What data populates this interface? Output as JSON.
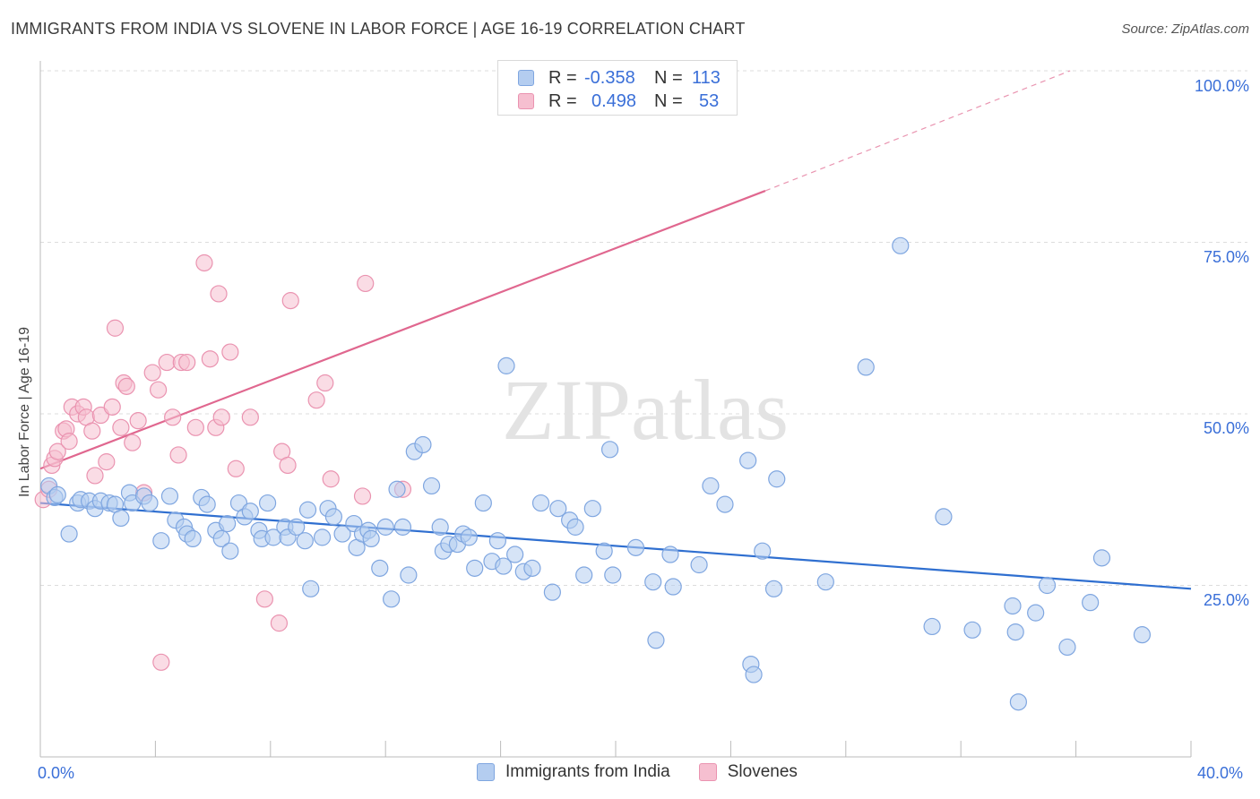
{
  "title": "IMMIGRANTS FROM INDIA VS SLOVENE IN LABOR FORCE | AGE 16-19 CORRELATION CHART",
  "source": "Source: ZipAtlas.com",
  "watermark": "ZIPatlas",
  "legend_top": {
    "rows": [
      {
        "r_label": "R =",
        "r_value": "-0.358",
        "n_label": "N =",
        "n_value": "113"
      },
      {
        "r_label": "R =",
        "r_value": "0.498",
        "n_label": "N =",
        "n_value": "53"
      }
    ]
  },
  "colors": {
    "blue_fill": "#b4cdf0",
    "blue_stroke": "#7fa6e0",
    "blue_line": "#2f6fd0",
    "pink_fill": "#f6bfd0",
    "pink_stroke": "#ea93b0",
    "pink_line": "#e0678f",
    "accent_text": "#3a6fd8",
    "grid": "#dcdcdc"
  },
  "chart_data": {
    "type": "scatter",
    "title": "IMMIGRANTS FROM INDIA VS SLOVENE IN LABOR FORCE | AGE 16-19 CORRELATION CHART",
    "xlabel": "",
    "ylabel": "In Labor Force | Age 16-19",
    "xlim": [
      0,
      40
    ],
    "ylim": [
      0,
      100
    ],
    "x_tick_labels": [
      "0.0%",
      "40.0%"
    ],
    "y_ticks": [
      25,
      50,
      75,
      100
    ],
    "y_tick_labels": [
      "25.0%",
      "50.0%",
      "75.0%",
      "100.0%"
    ],
    "grid": true,
    "legend": "bottom-center",
    "series": [
      {
        "name": "Immigrants from India",
        "color": "#b4cdf0",
        "r": "-0.358",
        "n": "113",
        "trend": {
          "x0": 0,
          "y0": 37.0,
          "x1": 40,
          "y1": 24.5
        },
        "points": [
          [
            0.3,
            39.5
          ],
          [
            0.5,
            37.8
          ],
          [
            0.6,
            38.2
          ],
          [
            1.0,
            32.5
          ],
          [
            1.3,
            37.0
          ],
          [
            1.4,
            37.5
          ],
          [
            1.7,
            37.3
          ],
          [
            1.9,
            36.2
          ],
          [
            2.1,
            37.3
          ],
          [
            2.4,
            37.0
          ],
          [
            2.6,
            36.8
          ],
          [
            2.8,
            34.8
          ],
          [
            3.1,
            38.5
          ],
          [
            3.2,
            37.0
          ],
          [
            3.6,
            38.0
          ],
          [
            3.8,
            37.0
          ],
          [
            4.2,
            31.5
          ],
          [
            4.5,
            38.0
          ],
          [
            4.7,
            34.5
          ],
          [
            5.0,
            33.5
          ],
          [
            5.1,
            32.5
          ],
          [
            5.3,
            31.8
          ],
          [
            5.6,
            37.8
          ],
          [
            5.8,
            36.8
          ],
          [
            6.1,
            33.0
          ],
          [
            6.3,
            31.8
          ],
          [
            6.5,
            34.0
          ],
          [
            6.6,
            30.0
          ],
          [
            6.9,
            37.0
          ],
          [
            7.1,
            35.0
          ],
          [
            7.3,
            35.8
          ],
          [
            7.6,
            33.0
          ],
          [
            7.7,
            31.8
          ],
          [
            7.9,
            37.0
          ],
          [
            8.1,
            32.0
          ],
          [
            8.5,
            33.5
          ],
          [
            8.6,
            32.0
          ],
          [
            8.9,
            33.5
          ],
          [
            9.2,
            31.5
          ],
          [
            9.3,
            36.0
          ],
          [
            9.4,
            24.5
          ],
          [
            9.8,
            32.0
          ],
          [
            10.0,
            36.2
          ],
          [
            10.2,
            35.0
          ],
          [
            10.5,
            32.5
          ],
          [
            10.9,
            34.0
          ],
          [
            11.0,
            30.5
          ],
          [
            11.2,
            32.5
          ],
          [
            11.4,
            33.0
          ],
          [
            11.5,
            31.8
          ],
          [
            11.8,
            27.5
          ],
          [
            12.0,
            33.5
          ],
          [
            12.2,
            23.0
          ],
          [
            12.4,
            39.0
          ],
          [
            12.6,
            33.5
          ],
          [
            12.8,
            26.5
          ],
          [
            13.0,
            44.5
          ],
          [
            13.3,
            45.5
          ],
          [
            13.6,
            39.5
          ],
          [
            13.9,
            33.5
          ],
          [
            14.0,
            30.0
          ],
          [
            14.2,
            31.0
          ],
          [
            14.5,
            31.0
          ],
          [
            14.7,
            32.5
          ],
          [
            14.9,
            32.0
          ],
          [
            15.1,
            27.5
          ],
          [
            15.4,
            37.0
          ],
          [
            15.7,
            28.5
          ],
          [
            15.9,
            31.5
          ],
          [
            16.1,
            27.8
          ],
          [
            16.2,
            57.0
          ],
          [
            16.5,
            29.5
          ],
          [
            16.8,
            27.0
          ],
          [
            17.1,
            27.5
          ],
          [
            17.4,
            37.0
          ],
          [
            17.8,
            24.0
          ],
          [
            18.0,
            36.2
          ],
          [
            18.4,
            34.5
          ],
          [
            18.6,
            33.5
          ],
          [
            18.9,
            26.5
          ],
          [
            19.2,
            36.2
          ],
          [
            19.6,
            30.0
          ],
          [
            19.8,
            44.8
          ],
          [
            19.9,
            26.5
          ],
          [
            20.7,
            30.5
          ],
          [
            21.3,
            25.5
          ],
          [
            21.4,
            17.0
          ],
          [
            21.9,
            29.5
          ],
          [
            22.9,
            28.0
          ],
          [
            23.3,
            39.5
          ],
          [
            23.8,
            36.8
          ],
          [
            24.6,
            43.2
          ],
          [
            24.7,
            13.5
          ],
          [
            25.1,
            30.0
          ],
          [
            25.6,
            40.5
          ],
          [
            24.8,
            12.0
          ],
          [
            25.5,
            24.5
          ],
          [
            27.3,
            25.5
          ],
          [
            28.7,
            56.8
          ],
          [
            29.9,
            74.5
          ],
          [
            31.0,
            19.0
          ],
          [
            31.4,
            35.0
          ],
          [
            32.4,
            18.5
          ],
          [
            33.8,
            22.0
          ],
          [
            33.9,
            18.2
          ],
          [
            34.0,
            8.0
          ],
          [
            35.0,
            25.0
          ],
          [
            35.7,
            16.0
          ],
          [
            36.5,
            22.5
          ],
          [
            36.9,
            29.0
          ],
          [
            38.3,
            17.8
          ],
          [
            34.6,
            21.0
          ],
          [
            22.0,
            24.8
          ]
        ]
      },
      {
        "name": "Slovenes",
        "color": "#f6bfd0",
        "r": "0.498",
        "n": "53",
        "trend": {
          "x0": 0,
          "y0": 42.0,
          "x1": 25.2,
          "y1": 82.5,
          "x_end_dash": 35.8,
          "y_end_dash": 100.0
        },
        "points": [
          [
            0.1,
            37.5
          ],
          [
            0.3,
            39.0
          ],
          [
            0.4,
            42.5
          ],
          [
            0.5,
            43.5
          ],
          [
            0.6,
            44.5
          ],
          [
            0.8,
            47.5
          ],
          [
            0.9,
            47.8
          ],
          [
            1.0,
            46.0
          ],
          [
            1.1,
            51.0
          ],
          [
            1.3,
            50.0
          ],
          [
            1.5,
            51.0
          ],
          [
            1.6,
            49.5
          ],
          [
            1.8,
            47.5
          ],
          [
            1.9,
            41.0
          ],
          [
            2.1,
            49.8
          ],
          [
            2.3,
            43.0
          ],
          [
            2.5,
            51.0
          ],
          [
            2.6,
            62.5
          ],
          [
            2.8,
            48.0
          ],
          [
            2.9,
            54.5
          ],
          [
            3.0,
            54.0
          ],
          [
            3.2,
            45.8
          ],
          [
            3.4,
            49.0
          ],
          [
            3.6,
            38.5
          ],
          [
            3.9,
            56.0
          ],
          [
            4.1,
            53.5
          ],
          [
            4.4,
            57.5
          ],
          [
            4.6,
            49.5
          ],
          [
            4.8,
            44.0
          ],
          [
            4.9,
            57.5
          ],
          [
            5.1,
            57.5
          ],
          [
            5.4,
            48.0
          ],
          [
            5.7,
            72.0
          ],
          [
            5.9,
            58.0
          ],
          [
            6.1,
            48.0
          ],
          [
            6.2,
            67.5
          ],
          [
            6.3,
            49.5
          ],
          [
            6.6,
            59.0
          ],
          [
            6.8,
            42.0
          ],
          [
            7.3,
            49.5
          ],
          [
            7.8,
            23.0
          ],
          [
            8.3,
            19.5
          ],
          [
            8.4,
            44.5
          ],
          [
            8.6,
            42.5
          ],
          [
            8.7,
            66.5
          ],
          [
            9.6,
            52.0
          ],
          [
            9.9,
            54.5
          ],
          [
            10.1,
            40.5
          ],
          [
            11.2,
            38.0
          ],
          [
            11.3,
            69.0
          ],
          [
            12.6,
            39.0
          ],
          [
            4.2,
            13.8
          ],
          [
            21.8,
            100.0
          ]
        ]
      }
    ]
  },
  "legend_bottom": {
    "items": [
      {
        "label": "Immigrants from India"
      },
      {
        "label": "Slovenes"
      }
    ]
  }
}
